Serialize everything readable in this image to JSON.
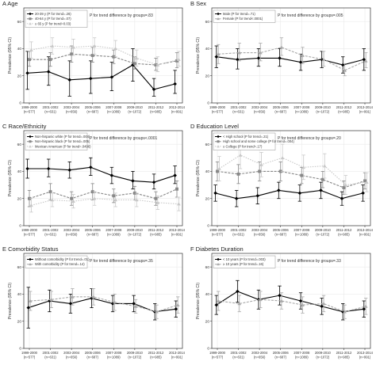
{
  "chart_data": [
    {
      "type": "line",
      "title": "A Age",
      "trend_text": "P for trend difference by groups=.83",
      "ylabel": "Prevalence (95% CI)",
      "ylim": [
        0,
        70
      ],
      "y_ticks": [
        0,
        20,
        40,
        60
      ],
      "categories": [
        "1999-2000",
        "2001-2002",
        "2003-2004",
        "2005-2006",
        "2007-2008",
        "2009-2010",
        "2011-2012",
        "2013-2014"
      ],
      "n_labels": [
        "(n=577)",
        "(n=631)",
        "(n=656)",
        "(n=687)",
        "(n=1089)",
        "(n=1072)",
        "(n=985)",
        "(n=991)"
      ],
      "legend_position": "top-left",
      "series": [
        {
          "name": "20-39 y (P for trend=.26)",
          "color": "#000000",
          "dash": "",
          "marker": "diamond",
          "values": [
            22,
            23,
            17,
            18,
            19,
            28,
            10,
            14
          ],
          "lower": [
            10,
            13,
            5,
            7,
            9,
            16,
            5,
            7
          ],
          "upper": [
            38,
            34,
            31,
            31,
            30,
            40,
            18,
            24
          ]
        },
        {
          "name": "40-64 y (P for trend=.07)",
          "color": "#888888",
          "dash": "3,1.5",
          "marker": "square",
          "values": [
            32,
            32,
            36,
            35,
            34,
            29,
            28,
            31
          ],
          "lower": [
            27,
            27,
            30,
            30,
            29,
            25,
            24,
            26
          ],
          "upper": [
            38,
            37,
            42,
            41,
            39,
            34,
            33,
            37
          ]
        },
        {
          "name": "≥ 65 y (P for trend=0.03)",
          "color": "#c8c8c8",
          "dash": "1.5,1.5",
          "marker": "triangle",
          "values": [
            39,
            42,
            41,
            42,
            40,
            33,
            28,
            32
          ],
          "lower": [
            33,
            36,
            35,
            36,
            34,
            27,
            23,
            27
          ],
          "upper": [
            45,
            48,
            47,
            48,
            46,
            39,
            34,
            38
          ]
        }
      ]
    },
    {
      "type": "line",
      "title": "B Sex",
      "trend_text": "P for trend difference by groups=.005",
      "ylabel": "Prevalence (95% CI)",
      "ylim": [
        0,
        70
      ],
      "y_ticks": [
        0,
        20,
        40,
        60
      ],
      "categories": [
        "1999-2000",
        "2001-2002",
        "2003-2004",
        "2005-2006",
        "2007-2008",
        "2009-2010",
        "2011-2012",
        "2013-2014"
      ],
      "n_labels": [
        "(n=577)",
        "(n=631)",
        "(n=656)",
        "(n=687)",
        "(n=1089)",
        "(n=1072)",
        "(n=985)",
        "(n=991)"
      ],
      "legend_position": "top-left",
      "series": [
        {
          "name": "Male (P for trend=.71)",
          "color": "#000000",
          "dash": "",
          "marker": "diamond",
          "values": [
            34,
            32,
            33,
            33,
            30,
            32,
            28,
            32
          ],
          "lower": [
            26,
            25,
            27,
            27,
            24,
            26,
            22,
            24
          ],
          "upper": [
            42,
            40,
            40,
            40,
            36,
            38,
            34,
            40
          ]
        },
        {
          "name": "Female (P for trend<.0001)",
          "color": "#aaaaaa",
          "dash": "3,1.5",
          "marker": "triangle",
          "values": [
            36,
            37,
            37,
            41,
            35,
            32,
            24,
            31
          ],
          "lower": [
            29,
            31,
            31,
            35,
            29,
            27,
            20,
            26
          ],
          "upper": [
            43,
            44,
            44,
            48,
            41,
            38,
            29,
            37
          ]
        }
      ]
    },
    {
      "type": "line",
      "title": "C Race/Ethnicity",
      "trend_text": "P for trend difference by groups<.0001",
      "ylabel": "Prevalence (95% CI)",
      "ylim": [
        0,
        70
      ],
      "y_ticks": [
        0,
        20,
        40,
        60
      ],
      "categories": [
        "1999-2000",
        "2001-2002",
        "2003-2004",
        "2005-2006",
        "2007-2008",
        "2009-2010",
        "2011-2012",
        "2013-2014"
      ],
      "n_labels": [
        "(n=577)",
        "(n=631)",
        "(n=656)",
        "(n=687)",
        "(n=1089)",
        "(n=1072)",
        "(n=985)",
        "(n=991)"
      ],
      "legend_position": "top-left",
      "series": [
        {
          "name": "Non-hispanic white (P for trend=.004)",
          "color": "#000000",
          "dash": "",
          "marker": "diamond",
          "values": [
            42,
            42,
            41,
            43,
            37,
            33,
            32,
            37
          ],
          "lower": [
            35,
            36,
            35,
            37,
            31,
            27,
            27,
            31
          ],
          "upper": [
            49,
            49,
            47,
            50,
            43,
            40,
            38,
            44
          ]
        },
        {
          "name": "Non-hispanic black (P for trend=.005)",
          "color": "#888888",
          "dash": "3,1.5",
          "marker": "square",
          "values": [
            20,
            25,
            20,
            25,
            22,
            24,
            20,
            27
          ],
          "lower": [
            14,
            19,
            15,
            19,
            17,
            19,
            15,
            21
          ],
          "upper": [
            26,
            31,
            25,
            31,
            27,
            29,
            25,
            33
          ]
        },
        {
          "name": "Mexican American (P for trend=.0496)",
          "color": "#c8c8c8",
          "dash": "1.5,1.5",
          "marker": "triangle",
          "values": [
            15,
            19,
            18,
            20,
            19,
            19,
            17,
            16
          ],
          "lower": [
            10,
            14,
            13,
            15,
            14,
            14,
            12,
            11
          ],
          "upper": [
            20,
            24,
            23,
            25,
            24,
            24,
            22,
            21
          ]
        }
      ]
    },
    {
      "type": "line",
      "title": "D Education Level",
      "trend_text": "P for trend difference by groups=.20",
      "ylabel": "Prevalence (95% CI)",
      "ylim": [
        0,
        70
      ],
      "y_ticks": [
        0,
        20,
        40,
        60
      ],
      "categories": [
        "1999-2000",
        "2001-2002",
        "2003-2004",
        "2005-2006",
        "2007-2008",
        "2009-2010",
        "2011-2012",
        "2013-2014"
      ],
      "n_labels": [
        "(n=577)",
        "(n=631)",
        "(n=656)",
        "(n=687)",
        "(n=1089)",
        "(n=1072)",
        "(n=985)",
        "(n=991)"
      ],
      "legend_position": "top-left",
      "series": [
        {
          "name": "< High school (P for trend=.21)",
          "color": "#000000",
          "dash": "",
          "marker": "diamond",
          "values": [
            24,
            20,
            22,
            26,
            24,
            26,
            20,
            24
          ],
          "lower": [
            18,
            14,
            16,
            20,
            18,
            20,
            15,
            18
          ],
          "upper": [
            30,
            26,
            28,
            32,
            30,
            32,
            25,
            30
          ]
        },
        {
          "name": "High school and some college (P for trend=.004)",
          "color": "#888888",
          "dash": "3,1.5",
          "marker": "square",
          "values": [
            40,
            38,
            40,
            40,
            37,
            34,
            28,
            33
          ],
          "lower": [
            33,
            31,
            33,
            33,
            31,
            28,
            23,
            27
          ],
          "upper": [
            47,
            45,
            47,
            47,
            43,
            40,
            33,
            39
          ]
        },
        {
          "name": "≥ College (P for trend=.17)",
          "color": "#c8c8c8",
          "dash": "1.5,1.5",
          "marker": "triangle",
          "values": [
            42,
            52,
            45,
            50,
            43,
            44,
            30,
            32
          ],
          "lower": [
            33,
            42,
            36,
            40,
            34,
            35,
            23,
            25
          ],
          "upper": [
            51,
            62,
            54,
            60,
            52,
            53,
            37,
            39
          ]
        }
      ]
    },
    {
      "type": "line",
      "title": "E Comorbidity Status",
      "trend_text": "P for trend difference by groups=.35",
      "ylabel": "Prevalence (95% CI)",
      "ylim": [
        0,
        70
      ],
      "y_ticks": [
        0,
        20,
        40,
        60
      ],
      "categories": [
        "1999-2000",
        "2001-2002",
        "2003-2004",
        "2005-2006",
        "2007-2008",
        "2009-2010",
        "2011-2012",
        "2013-2014"
      ],
      "n_labels": [
        "(n=577)",
        "(n=631)",
        "(n=656)",
        "(n=687)",
        "(n=1089)",
        "(n=1072)",
        "(n=985)",
        "(n=991)"
      ],
      "legend_position": "top-left",
      "series": [
        {
          "name": "Without comorbidity (P for trend=.01)",
          "color": "#000000",
          "dash": "",
          "marker": "diamond",
          "values": [
            30,
            35,
            33,
            37,
            33,
            33,
            27,
            29
          ],
          "lower": [
            15,
            27,
            26,
            30,
            27,
            27,
            21,
            23
          ],
          "upper": [
            45,
            43,
            40,
            44,
            39,
            39,
            33,
            35
          ]
        },
        {
          "name": "With comorbidity (P for trend=.14)",
          "color": "#aaaaaa",
          "dash": "3,1.5",
          "marker": "triangle",
          "values": [
            35,
            36,
            38,
            38,
            34,
            31,
            27,
            32
          ],
          "lower": [
            28,
            30,
            32,
            32,
            28,
            26,
            22,
            26
          ],
          "upper": [
            42,
            42,
            44,
            44,
            40,
            36,
            32,
            38
          ]
        }
      ]
    },
    {
      "type": "line",
      "title": "F Diabetes Duration",
      "trend_text": "P for trend difference by groups=.33",
      "ylabel": "Prevalence (95% CI)",
      "ylim": [
        0,
        70
      ],
      "y_ticks": [
        0,
        20,
        40,
        60
      ],
      "categories": [
        "1999-2000",
        "2001-2002",
        "2003-2004",
        "2005-2006",
        "2007-2008",
        "2009-2010",
        "2011-2012",
        "2013-2014"
      ],
      "n_labels": [
        "(n=577)",
        "(n=631)",
        "(n=656)",
        "(n=687)",
        "(n=1089)",
        "(n=1072)",
        "(n=985)",
        "(n=991)"
      ],
      "legend_position": "top-left",
      "series": [
        {
          "name": "< 10 years (P for trend=.003)",
          "color": "#000000",
          "dash": "",
          "marker": "diamond",
          "values": [
            32,
            42,
            36,
            39,
            35,
            31,
            27,
            29
          ],
          "lower": [
            25,
            34,
            29,
            32,
            29,
            25,
            21,
            23
          ],
          "upper": [
            39,
            50,
            43,
            46,
            41,
            37,
            33,
            35
          ]
        },
        {
          "name": "≥ 10 years (P for trend=.16)",
          "color": "#aaaaaa",
          "dash": "3,1.5",
          "marker": "triangle",
          "values": [
            35,
            33,
            36,
            35,
            32,
            33,
            27,
            31
          ],
          "lower": [
            28,
            27,
            30,
            29,
            26,
            27,
            22,
            25
          ],
          "upper": [
            42,
            39,
            42,
            41,
            38,
            39,
            32,
            37
          ]
        }
      ]
    }
  ]
}
